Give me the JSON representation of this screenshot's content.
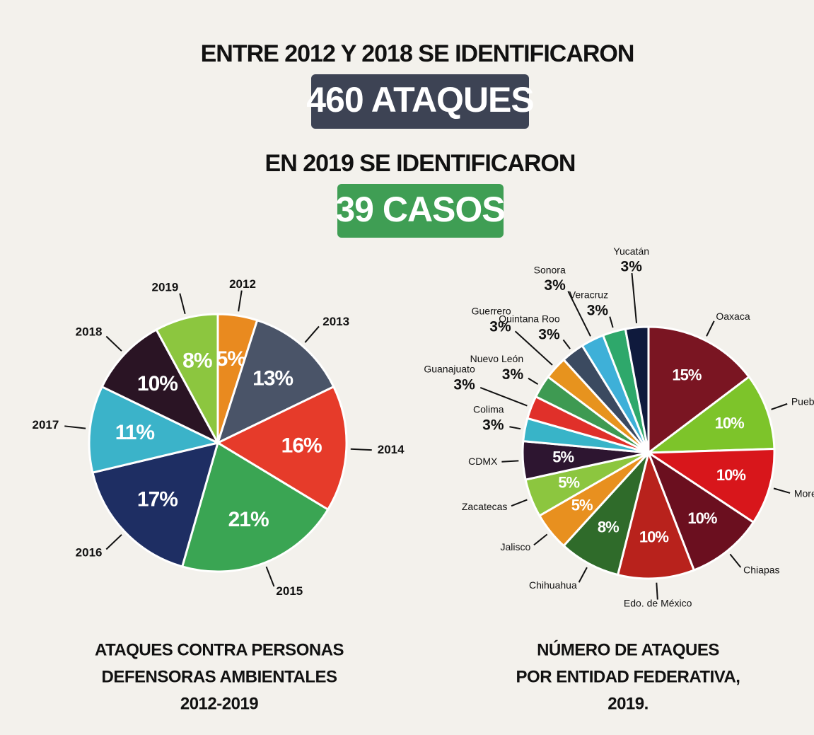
{
  "header": {
    "line1": "ENTRE 2012 Y 2018 SE IDENTIFICARON",
    "box1": "460 ATAQUES",
    "line2": "EN 2019 SE IDENTIFICARON",
    "box2": "39 CASOS"
  },
  "chart_data": [
    {
      "type": "pie",
      "title": [
        "ATAQUES CONTRA PERSONAS",
        "DEFENSORAS AMBIENTALES",
        "2012-2019"
      ],
      "categories": [
        "2012",
        "2013",
        "2014",
        "2015",
        "2016",
        "2017",
        "2018",
        "2019"
      ],
      "values": [
        5,
        13,
        16,
        21,
        17,
        11,
        10,
        8
      ],
      "value_labels": [
        "5%",
        "13%",
        "16%",
        "21%",
        "17%",
        "11%",
        "10%",
        "8%"
      ],
      "colors": [
        "#e98a1f",
        "#4a5468",
        "#e63b2a",
        "#3aa553",
        "#1e2e63",
        "#3bb3c9",
        "#2a1424",
        "#8cc63f"
      ]
    },
    {
      "type": "pie",
      "title": [
        "NÚMERO DE ATAQUES",
        "POR ENTIDAD FEDERATIVA,",
        "2019."
      ],
      "categories": [
        "Oaxaca",
        "Puebla",
        "Morelos",
        "Chiapas",
        "Edo. de México",
        "Chihuahua",
        "Jalisco",
        "Zacatecas",
        "CDMX",
        "Colima",
        "Guanajuato",
        "Nuevo León",
        "Guerrero",
        "Quintana Roo",
        "Sonora",
        "Veracruz",
        "Yucatán"
      ],
      "values": [
        15,
        10,
        10,
        10,
        10,
        8,
        5,
        5,
        5,
        3,
        3,
        3,
        3,
        3,
        3,
        3,
        3
      ],
      "value_labels": [
        "15%",
        "10%",
        "10%",
        "10%",
        "10%",
        "8%",
        "5%",
        "5%",
        "5%",
        "3%",
        "3%",
        "3%",
        "3%",
        "3%",
        "3%",
        "3%",
        "3%"
      ],
      "colors": [
        "#7a1522",
        "#7dc42a",
        "#d8161b",
        "#6b0f1f",
        "#b8221c",
        "#2f6b2a",
        "#e8901f",
        "#8cc63f",
        "#2d1530",
        "#38b4c8",
        "#e0302a",
        "#3e9a52",
        "#e7931e",
        "#3b4a60",
        "#3eb0d8",
        "#2ea86b",
        "#0f1a3d"
      ]
    }
  ]
}
